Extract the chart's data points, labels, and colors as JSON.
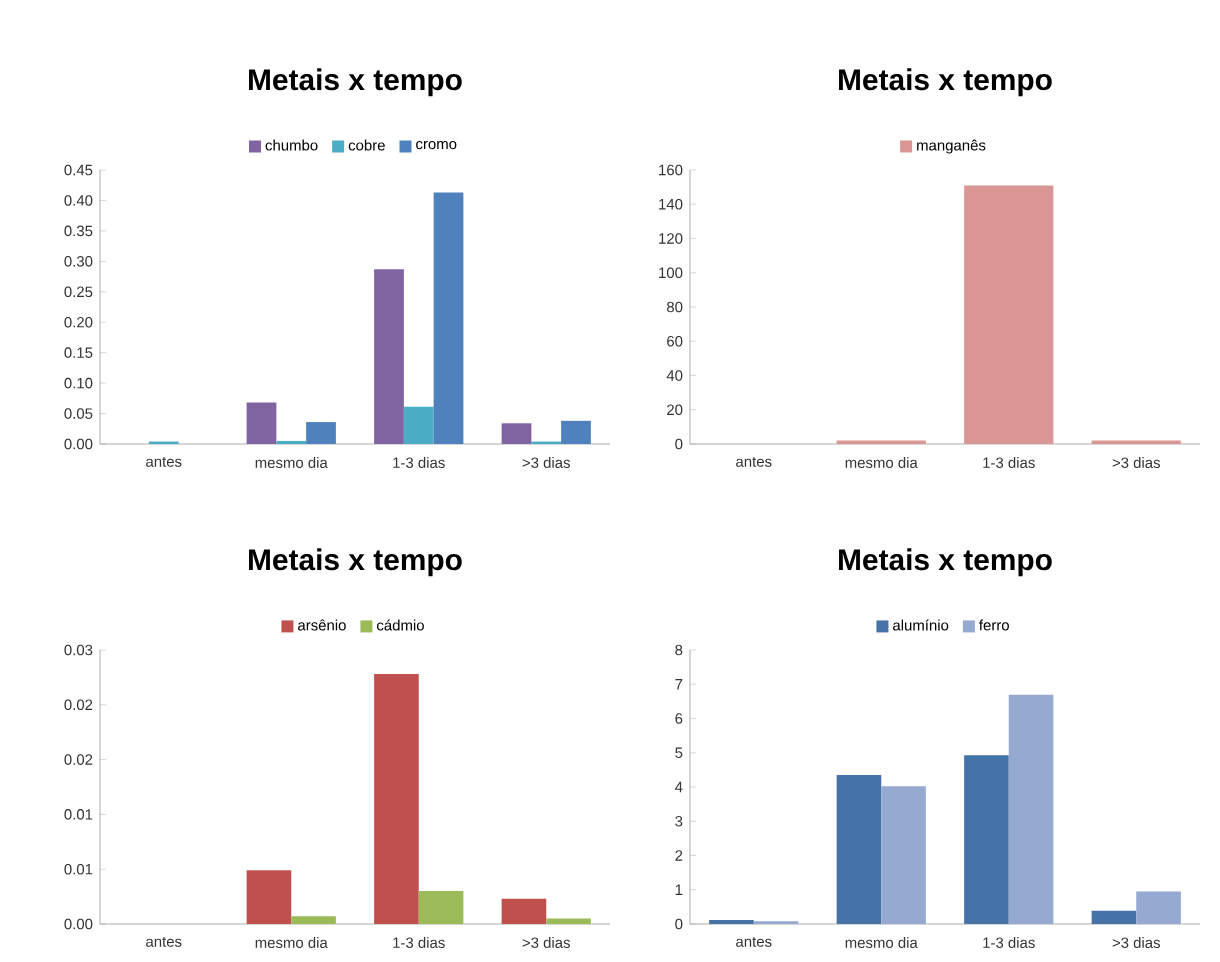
{
  "chart_data": [
    {
      "type": "bar",
      "title": "Metais x tempo",
      "categories": [
        "antes",
        "mesmo dia",
        "1-3 dias",
        ">3 dias"
      ],
      "series": [
        {
          "name": "chumbo",
          "color": "#8064a2",
          "values": [
            0,
            0.068,
            0.287,
            0.034
          ]
        },
        {
          "name": "cobre",
          "color": "#4bacc6",
          "values": [
            0.004,
            0.005,
            0.061,
            0.004
          ]
        },
        {
          "name": "cromo",
          "color": "#4f81bd",
          "values": [
            0,
            0.036,
            0.413,
            0.038
          ]
        }
      ],
      "ylim": [
        0,
        0.45
      ],
      "yticks": [
        {
          "value": 0,
          "label": "0.00"
        },
        {
          "value": 0.05,
          "label": "0.05"
        },
        {
          "value": 0.1,
          "label": "0.10"
        },
        {
          "value": 0.15,
          "label": "0.15"
        },
        {
          "value": 0.2,
          "label": "0.20"
        },
        {
          "value": 0.25,
          "label": "0.25"
        },
        {
          "value": 0.3,
          "label": "0.30"
        },
        {
          "value": 0.35,
          "label": "0.35"
        },
        {
          "value": 0.4,
          "label": "0.40"
        },
        {
          "value": 0.45,
          "label": "0.45"
        }
      ],
      "legend": "top"
    },
    {
      "type": "bar",
      "title": "Metais x tempo",
      "categories": [
        "antes",
        "mesmo dia",
        "1-3 dias",
        ">3 dias"
      ],
      "series": [
        {
          "name": "manganês",
          "color": "#d99694",
          "values": [
            0,
            2,
            151,
            2
          ]
        }
      ],
      "ylim": [
        0,
        160
      ],
      "yticks": [
        0,
        20,
        40,
        60,
        80,
        100,
        120,
        140,
        160
      ],
      "legend": "top"
    },
    {
      "type": "bar",
      "title": "Metais x tempo",
      "categories": [
        "antes",
        "mesmo dia",
        "1-3 dias",
        ">3 dias"
      ],
      "series": [
        {
          "name": "arsênio",
          "color": "#c0504d",
          "values": [
            0,
            0.0049,
            0.0228,
            0.0023
          ]
        },
        {
          "name": "cádmio",
          "color": "#9bbb59",
          "values": [
            0,
            0.0007,
            0.003,
            0.0005
          ]
        }
      ],
      "ylim": [
        0,
        0.025
      ],
      "yticks": [
        {
          "value": 0,
          "label": "0.00"
        },
        {
          "value": 0.005,
          "label": "0.01"
        },
        {
          "value": 0.01,
          "label": "0.01"
        },
        {
          "value": 0.015,
          "label": "0.02"
        },
        {
          "value": 0.02,
          "label": "0.02"
        },
        {
          "value": 0.025,
          "label": "0.03"
        }
      ],
      "legend": "top"
    },
    {
      "type": "bar",
      "title": "Metais x tempo",
      "categories": [
        "antes",
        "mesmo dia",
        "1-3 dias",
        ">3 dias"
      ],
      "series": [
        {
          "name": "alumínio",
          "color": "#4572a7",
          "values": [
            0.12,
            4.35,
            4.93,
            0.39
          ]
        },
        {
          "name": "ferro",
          "color": "#95a9d1",
          "values": [
            0.08,
            4.02,
            6.69,
            0.95
          ]
        }
      ],
      "ylim": [
        0,
        8
      ],
      "yticks": [
        0,
        1,
        2,
        3,
        4,
        5,
        6,
        7,
        8
      ],
      "legend": "top"
    }
  ]
}
